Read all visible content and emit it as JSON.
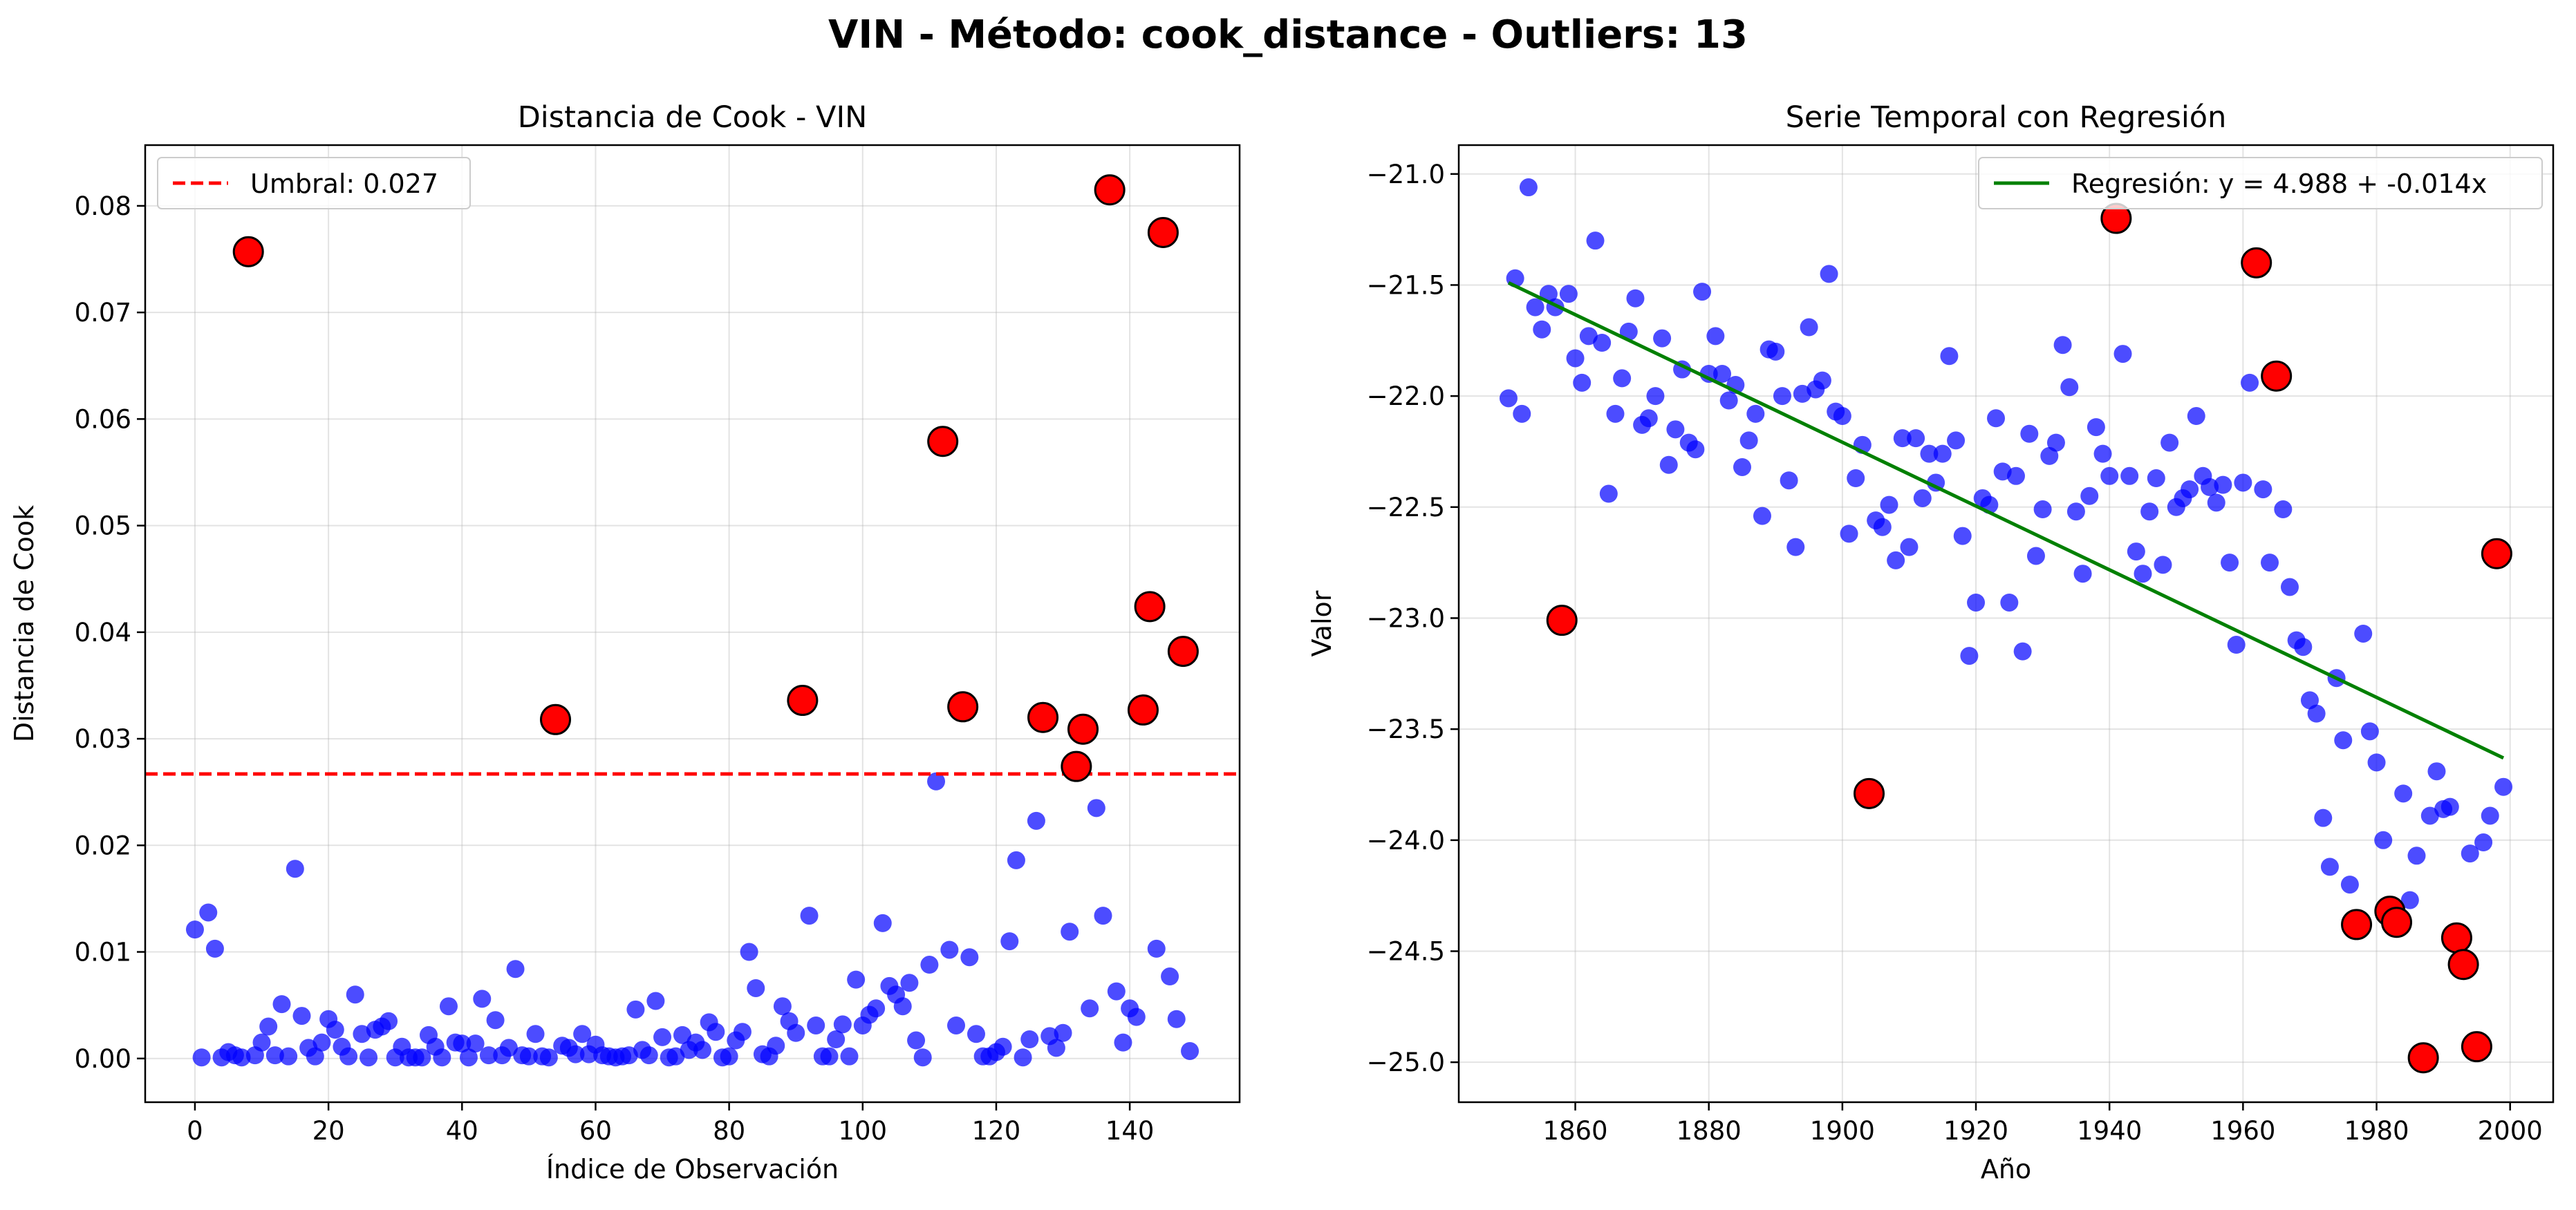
{
  "suptitle": "VIN  - Método: cook_distance - Outliers: 13",
  "colors": {
    "normal": "#0000ff",
    "outlier": "#ff0000",
    "threshold": "#ff0000",
    "regression": "#008000"
  },
  "chart_data": [
    {
      "type": "scatter",
      "title": "Distancia de Cook - VIN",
      "xlabel": "Índice de Observación",
      "ylabel": "Distancia de Cook",
      "xlim": [
        -7.45,
        156.45
      ],
      "ylim": [
        -0.0041,
        0.0857
      ],
      "xticks": [
        0,
        20,
        40,
        60,
        80,
        100,
        120,
        140
      ],
      "xtick_labels": [
        "0",
        "20",
        "40",
        "60",
        "80",
        "100",
        "120",
        "140"
      ],
      "yticks": [
        0.0,
        0.01,
        0.02,
        0.03,
        0.04,
        0.05,
        0.06,
        0.07,
        0.08
      ],
      "ytick_labels": [
        "0.00",
        "0.01",
        "0.02",
        "0.03",
        "0.04",
        "0.05",
        "0.06",
        "0.07",
        "0.08"
      ],
      "grid": true,
      "legend_position": "top-left",
      "threshold": {
        "value": 0.0267,
        "label": "Umbral: 0.027"
      },
      "series": [
        {
          "values": [
            0.0121,
            0.0001,
            0.0137,
            0.0103,
            0.0001,
            0.0006,
            0.0003,
            0.0001,
            0.0757,
            0.0003,
            0.0015,
            0.003,
            0.0003,
            0.0051,
            0.0002,
            0.0178,
            0.004,
            0.001,
            0.0002,
            0.0015,
            0.0037,
            0.0027,
            0.0011,
            0.0002,
            0.006,
            0.0023,
            0.0001,
            0.0027,
            0.003,
            0.0035,
            0.0001,
            0.0011,
            0.0001,
            0.0001,
            0.0001,
            0.0022,
            0.0011,
            0.0001,
            0.0049,
            0.0015,
            0.0014,
            0.0001,
            0.0014,
            0.0056,
            0.0003,
            0.0036,
            0.0003,
            0.001,
            0.0084,
            0.0003,
            0.0002,
            0.0023,
            0.0002,
            0.0001,
            0.0318,
            0.0012,
            0.001,
            0.0004,
            0.0023,
            0.0004,
            0.0013,
            0.0003,
            0.0002,
            0.0001,
            0.0002,
            0.0003,
            0.0046,
            0.0008,
            0.0003,
            0.0054,
            0.002,
            0.0001,
            0.0002,
            0.0022,
            0.0008,
            0.0015,
            0.0008,
            0.0034,
            0.0025,
            0.0001,
            0.0002,
            0.0017,
            0.0025,
            0.01,
            0.0066,
            0.0004,
            0.0002,
            0.0012,
            0.0049,
            0.0035,
            0.0024,
            0.0336,
            0.0134,
            0.0031,
            0.0002,
            0.0002,
            0.0018,
            0.0032,
            0.0002,
            0.0074,
            0.0031,
            0.0041,
            0.0047,
            0.0127,
            0.0068,
            0.006,
            0.0049,
            0.0071,
            0.0017,
            0.0001,
            0.0088,
            0.026,
            0.0579,
            0.0102,
            0.0031,
            0.033,
            0.0095,
            0.0023,
            0.0002,
            0.0002,
            0.0006,
            0.0011,
            0.011,
            0.0186,
            0.0001,
            0.0018,
            0.0223,
            0.032,
            0.0021,
            0.001,
            0.0024,
            0.0119,
            0.0274,
            0.0309,
            0.0047,
            0.0235,
            0.0134,
            0.0815,
            0.0063,
            0.0015,
            0.0047,
            0.0039,
            0.0327,
            0.0424,
            0.0103,
            0.0775,
            0.0077,
            0.0037,
            0.0382,
            0.0007
          ]
        },
        {
          "name": "outliers",
          "x": [
            8,
            54,
            91,
            112,
            115,
            127,
            132,
            133,
            137,
            142,
            143,
            145,
            148
          ],
          "y": [
            0.0757,
            0.0318,
            0.0336,
            0.0579,
            0.033,
            0.032,
            0.0274,
            0.0309,
            0.0815,
            0.0327,
            0.0424,
            0.0775,
            0.0382
          ]
        }
      ]
    },
    {
      "type": "scatter",
      "title": "Serie Temporal con Regresión",
      "xlabel": "Año",
      "ylabel": "Valor",
      "xlim": [
        1842.55,
        2006.45
      ],
      "ylim": [
        -25.18,
        -20.87
      ],
      "xticks": [
        1860,
        1880,
        1900,
        1920,
        1940,
        1960,
        1980,
        2000
      ],
      "xtick_labels": [
        "1860",
        "1880",
        "1900",
        "1920",
        "1940",
        "1960",
        "1980",
        "2000"
      ],
      "yticks": [
        -21.0,
        -21.5,
        -22.0,
        -22.5,
        -23.0,
        -23.5,
        -24.0,
        -24.5,
        -25.0
      ],
      "ytick_labels": [
        "−21.0",
        "−21.5",
        "−22.0",
        "−22.5",
        "−23.0",
        "−23.5",
        "−24.0",
        "−24.5",
        "−25.0"
      ],
      "grid": true,
      "legend_position": "top-right",
      "regression": {
        "label": "Regresión: y = 4.988 + -0.014x",
        "x": [
          1850,
          1999
        ],
        "y": [
          -21.49,
          -23.63
        ]
      },
      "series": [
        {
          "x_start": 1850,
          "values": [
            -22.01,
            -21.47,
            -22.08,
            -21.06,
            -21.6,
            -21.7,
            -21.54,
            -21.6,
            -23.01,
            -21.54,
            -21.83,
            -21.94,
            -21.73,
            -21.3,
            -21.76,
            -22.44,
            -22.08,
            -21.92,
            -21.71,
            -21.56,
            -22.13,
            -22.1,
            -22.0,
            -21.74,
            -22.31,
            -22.15,
            -21.88,
            -22.21,
            -22.24,
            -21.53,
            -21.9,
            -21.73,
            -21.9,
            -22.02,
            -21.95,
            -22.32,
            -22.2,
            -22.08,
            -22.54,
            -21.79,
            -21.8,
            -22.0,
            -22.38,
            -22.68,
            -21.99,
            -21.69,
            -21.97,
            -21.93,
            -21.45,
            -22.07,
            -22.09,
            -22.62,
            -22.37,
            -22.22,
            -23.79,
            -22.56,
            -22.59,
            -22.49,
            -22.74,
            -22.19,
            -22.68,
            -22.19,
            -22.46,
            -22.26,
            -22.39,
            -22.26,
            -21.82,
            -22.2,
            -22.63,
            -23.17,
            -22.93,
            -22.46,
            -22.49,
            -22.1,
            -22.34,
            -22.93,
            -22.36,
            -23.15,
            -22.17,
            -22.72,
            -22.51,
            -22.27,
            -22.21,
            -21.77,
            -21.96,
            -22.52,
            -22.8,
            -22.45,
            -22.14,
            -22.26,
            -22.36,
            -21.2,
            -21.81,
            -22.36,
            -22.7,
            -22.8,
            -22.52,
            -22.37,
            -22.76,
            -22.21,
            -22.5,
            -22.46,
            -22.42,
            -22.09,
            -22.36,
            -22.41,
            -22.48,
            -22.4,
            -22.75,
            -23.12,
            -22.39,
            -21.94,
            -21.4,
            -22.42,
            -22.75,
            -21.91,
            -22.51,
            -22.86,
            -23.1,
            -23.13,
            -23.37,
            -23.43,
            -23.9,
            -24.12,
            -23.27,
            -23.55,
            -24.2,
            -24.38,
            -23.07,
            -23.51,
            -23.65,
            -24.0,
            -24.32,
            -24.37,
            -23.79,
            -24.27,
            -24.07,
            -24.98,
            -23.89,
            -23.69,
            -23.86,
            -23.85,
            -24.44,
            -24.56,
            -24.06,
            -24.93,
            -24.01,
            -23.89,
            -22.71,
            -23.76
          ]
        },
        {
          "name": "outliers",
          "x": [
            1858,
            1904,
            1941,
            1962,
            1965,
            1977,
            1982,
            1983,
            1987,
            1992,
            1993,
            1995,
            1998
          ],
          "y": [
            -23.01,
            -23.79,
            -21.2,
            -21.4,
            -21.91,
            -24.38,
            -24.32,
            -24.37,
            -24.98,
            -24.44,
            -24.56,
            -24.93,
            -22.71
          ]
        }
      ]
    }
  ]
}
